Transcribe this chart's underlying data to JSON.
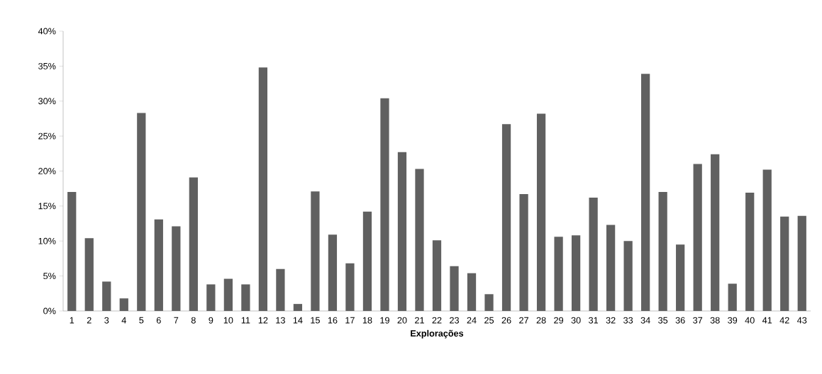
{
  "chart_data": {
    "type": "bar",
    "xlabel": "Explorações",
    "categories": [
      "1",
      "2",
      "3",
      "4",
      "5",
      "6",
      "7",
      "8",
      "9",
      "10",
      "11",
      "12",
      "13",
      "14",
      "15",
      "16",
      "17",
      "18",
      "19",
      "20",
      "21",
      "22",
      "23",
      "24",
      "25",
      "26",
      "27",
      "28",
      "29",
      "30",
      "31",
      "32",
      "33",
      "34",
      "35",
      "36",
      "37",
      "38",
      "39",
      "40",
      "41",
      "42",
      "43"
    ],
    "values": [
      17.0,
      10.4,
      4.2,
      1.8,
      28.3,
      13.1,
      12.1,
      19.1,
      3.8,
      4.6,
      3.8,
      34.8,
      6.0,
      1.0,
      17.1,
      10.9,
      6.8,
      14.2,
      30.4,
      22.7,
      20.3,
      10.1,
      6.4,
      5.4,
      2.4,
      26.7,
      16.7,
      28.2,
      10.6,
      10.8,
      16.2,
      12.3,
      10.0,
      33.9,
      17.0,
      9.5,
      21.0,
      22.4,
      3.9,
      16.9,
      20.2,
      13.5,
      13.6
    ],
    "color": "#606060",
    "ylim": [
      0,
      40
    ],
    "yticks": [
      {
        "value": 0,
        "label": "0%"
      },
      {
        "value": 5,
        "label": "5%"
      },
      {
        "value": 10,
        "label": "10%"
      },
      {
        "value": 15,
        "label": "15%"
      },
      {
        "value": 20,
        "label": "20%"
      },
      {
        "value": 25,
        "label": "25%"
      },
      {
        "value": 30,
        "label": "30%"
      },
      {
        "value": 35,
        "label": "35%"
      },
      {
        "value": 40,
        "label": "40%"
      }
    ],
    "grid": false
  }
}
